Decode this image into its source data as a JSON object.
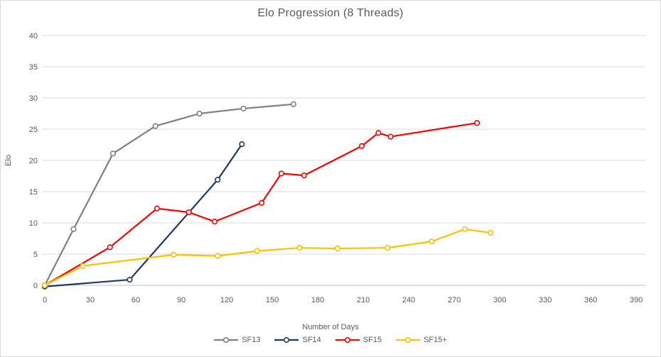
{
  "title": "Elo Progression (8 Threads)",
  "colors": {
    "sf13": "#808080",
    "sf14": "#1f3864",
    "sf15": "#ff0000",
    "sf15plus": "#ffc000",
    "gridline": "#d9d9d9",
    "axis_line": "#bfbfbf",
    "text": "#595959",
    "background": "#ffffff",
    "marker_fill": "#ffffff"
  },
  "chart_data": {
    "type": "line",
    "title": "Elo Progression (8 Threads)",
    "xlabel": "Number of Days",
    "ylabel": "Elo",
    "xlim": [
      0,
      396
    ],
    "ylim": [
      0,
      40
    ],
    "x_ticks": [
      0,
      30,
      60,
      90,
      120,
      150,
      180,
      210,
      240,
      270,
      300,
      330,
      360,
      390
    ],
    "y_ticks": [
      0,
      5,
      10,
      15,
      20,
      25,
      30,
      35,
      40
    ],
    "grid": "horizontal-only",
    "legend_position": "bottom",
    "marker": "circle-open",
    "series": [
      {
        "name": "SF13",
        "color": "#808080",
        "points": [
          [
            0,
            0
          ],
          [
            19,
            9.0
          ],
          [
            45,
            21.1
          ],
          [
            73,
            25.5
          ],
          [
            102,
            27.5
          ],
          [
            131,
            28.3
          ],
          [
            164,
            29.0
          ]
        ]
      },
      {
        "name": "SF14",
        "color": "#1f3864",
        "points": [
          [
            0,
            -0.2
          ],
          [
            56,
            0.9
          ],
          [
            114,
            16.9
          ],
          [
            130,
            22.6
          ]
        ]
      },
      {
        "name": "SF15",
        "color": "#ff0000",
        "points": [
          [
            0,
            0
          ],
          [
            43,
            6.1
          ],
          [
            74,
            12.3
          ],
          [
            95,
            11.7
          ],
          [
            112,
            10.2
          ],
          [
            143,
            13.2
          ],
          [
            156,
            17.9
          ],
          [
            171,
            17.6
          ],
          [
            209,
            22.3
          ],
          [
            220,
            24.4
          ],
          [
            228,
            23.8
          ],
          [
            285,
            26.0
          ]
        ]
      },
      {
        "name": "SF15+",
        "color": "#ffc000",
        "points": [
          [
            0,
            0
          ],
          [
            25,
            3.1
          ],
          [
            85,
            4.9
          ],
          [
            114,
            4.7
          ],
          [
            140,
            5.5
          ],
          [
            168,
            6.0
          ],
          [
            193,
            5.9
          ],
          [
            226,
            6.0
          ],
          [
            255,
            7.0
          ],
          [
            277,
            9.0
          ],
          [
            294,
            8.4
          ]
        ]
      }
    ]
  }
}
